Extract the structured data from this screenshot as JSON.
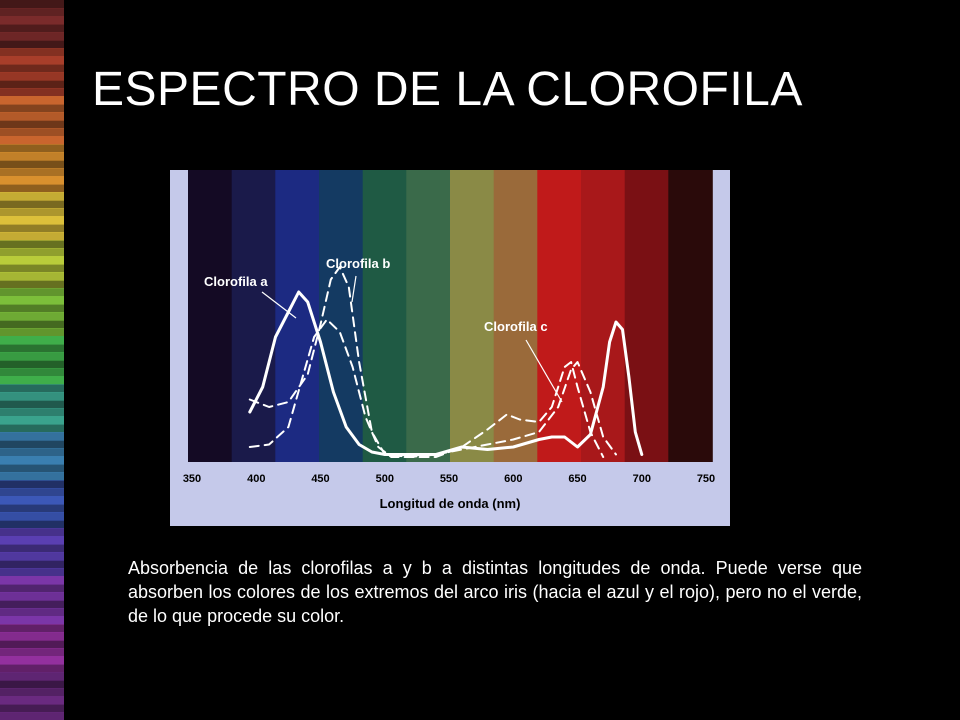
{
  "slide": {
    "title": "ESPECTRO DE LA CLOROFILA",
    "caption": "Absorbencia de las clorofilas a y b a distintas longitudes de onda. Puede verse que absorben los colores de los extremos del arco iris (hacia el azul y el rojo), pero no el verde, de lo que procede su color.",
    "stripe_colors": [
      "#7a2b2b",
      "#a83e2a",
      "#c9652e",
      "#d9902e",
      "#dcc03a",
      "#b9cc3a",
      "#7cbf3a",
      "#3fae4a",
      "#3aa38d",
      "#3a7fb0",
      "#3c58b8",
      "#5a3fb2",
      "#7b36a8",
      "#93309e",
      "#6a2a80"
    ]
  },
  "chart_data": {
    "type": "line",
    "xlabel": "Longitud de onda (nm)",
    "ylabel": "",
    "xlim": [
      350,
      750
    ],
    "ylim": [
      0,
      1
    ],
    "x_ticks": [
      350,
      400,
      450,
      500,
      550,
      600,
      650,
      700,
      750
    ],
    "background_colors": [
      "#140a24",
      "#1a1a4a",
      "#1c2a82",
      "#143a62",
      "#1f5a44",
      "#3a6a4a",
      "#8a8a46",
      "#9a6a3a",
      "#c01a1a",
      "#a8181a",
      "#7a1014",
      "#2a0a0a"
    ],
    "series": [
      {
        "name": "Clorofila a",
        "style": "solid",
        "x": [
          395,
          405,
          415,
          425,
          433,
          440,
          450,
          460,
          470,
          480,
          490,
          500,
          520,
          540,
          560,
          580,
          600,
          620,
          630,
          640,
          650,
          660,
          670,
          675,
          680,
          685,
          690,
          695,
          700
        ],
        "y": [
          0.2,
          0.3,
          0.5,
          0.6,
          0.68,
          0.64,
          0.48,
          0.28,
          0.14,
          0.07,
          0.04,
          0.03,
          0.03,
          0.03,
          0.06,
          0.05,
          0.06,
          0.09,
          0.1,
          0.1,
          0.06,
          0.11,
          0.3,
          0.48,
          0.56,
          0.53,
          0.34,
          0.12,
          0.03
        ]
      },
      {
        "name": "Clorofila b",
        "style": "dashed",
        "x": [
          395,
          410,
          425,
          440,
          450,
          458,
          465,
          472,
          480,
          490,
          500,
          520,
          540,
          560,
          580,
          600,
          620,
          635,
          645,
          650,
          660,
          670,
          680
        ],
        "y": [
          0.25,
          0.22,
          0.24,
          0.35,
          0.55,
          0.73,
          0.78,
          0.7,
          0.4,
          0.12,
          0.03,
          0.02,
          0.03,
          0.05,
          0.07,
          0.09,
          0.12,
          0.22,
          0.37,
          0.4,
          0.28,
          0.1,
          0.03
        ]
      },
      {
        "name": "Clorofila c",
        "style": "dashed",
        "x": [
          395,
          410,
          425,
          435,
          445,
          455,
          465,
          475,
          485,
          495,
          505,
          520,
          540,
          560,
          580,
          595,
          605,
          620,
          630,
          640,
          645,
          650,
          660,
          670
        ],
        "y": [
          0.06,
          0.07,
          0.14,
          0.32,
          0.5,
          0.57,
          0.52,
          0.38,
          0.18,
          0.06,
          0.02,
          0.02,
          0.02,
          0.06,
          0.13,
          0.19,
          0.17,
          0.16,
          0.22,
          0.38,
          0.4,
          0.3,
          0.12,
          0.02
        ]
      }
    ],
    "labels": [
      "Clorofila a",
      "Clorofila b",
      "Clorofila c"
    ],
    "grid": false,
    "legend": "none"
  }
}
